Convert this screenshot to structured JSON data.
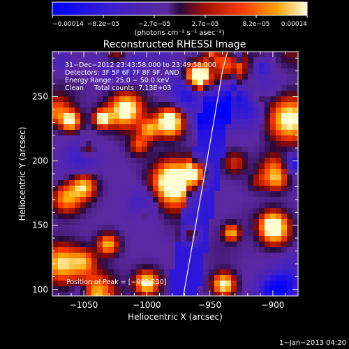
{
  "chart_data": {
    "type": "heatmap",
    "title": "Reconstructed RHESSI Image",
    "xlabel": "Heliocentric X (arcsec)",
    "ylabel": "Heliocentric Y (arcsec)",
    "xlim": [
      -1075,
      -880
    ],
    "ylim": [
      95,
      285
    ],
    "xticks": [
      -1050,
      -1000,
      -950,
      -900
    ],
    "yticks": [
      100,
      150,
      200,
      250
    ],
    "xtick_labels": [
      "−1050",
      "−1000",
      "−950",
      "−900"
    ],
    "ytick_labels": [
      "100",
      "150",
      "200",
      "250"
    ],
    "colorbar": {
      "tick_labels": [
        "−0.00014",
        "−8.2e−05",
        "−2.7e−05",
        "2.7e−05",
        "8.2e−05",
        "0.00014"
      ],
      "range": [
        -0.00014,
        0.00014
      ],
      "unit_label": "(photons cm⁻² s⁻¹ asec⁻²)"
    },
    "annotations": [
      "31−Dec−2012 23:43:58.000 to 23:49:58.000",
      "Detectors: 3F 5F 6F 7F 8F 9F, AND",
      "Energy Range: 25.0 − 50.0 keV",
      "Clean     Total counts: 7.13E+03",
      "Position of Peak = [−982,230]"
    ],
    "limb_curve": [
      [
        -971,
        95
      ],
      [
        -963,
        140
      ],
      [
        -955,
        185
      ],
      [
        -947,
        230
      ],
      [
        -940,
        270
      ],
      [
        -936,
        285
      ]
    ],
    "timestamp": "1−Jan−2013 04:20"
  }
}
